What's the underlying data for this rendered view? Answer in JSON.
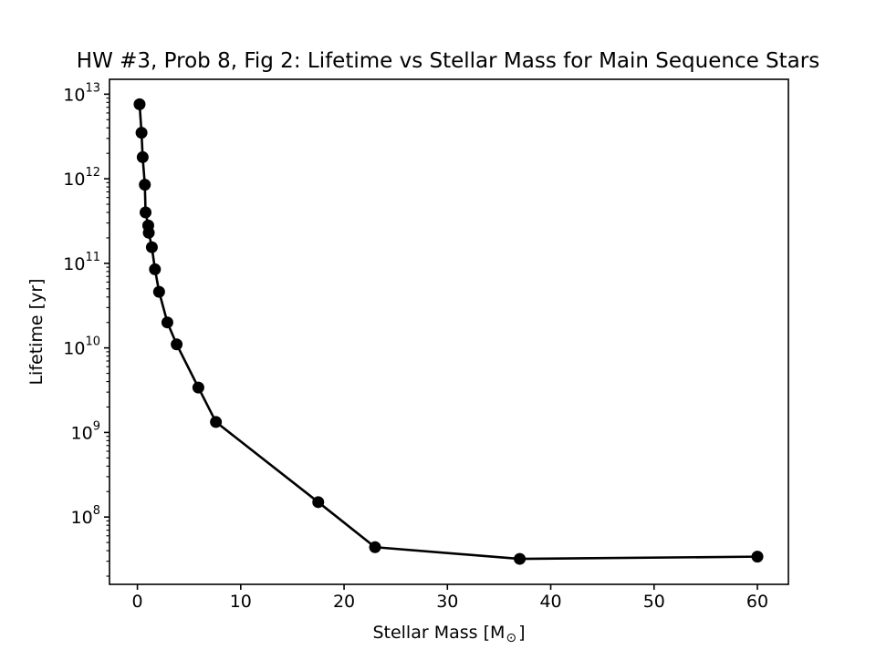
{
  "chart_data": {
    "type": "line",
    "title": "HW #3, Prob 8, Fig 2: Lifetime vs Stellar Mass for Main Sequence Stars",
    "xlabel": {
      "text": "Stellar Mass [M",
      "symbol": "⊙",
      "suffix": "]"
    },
    "ylabel": "Lifetime [yr]",
    "xscale": "linear",
    "yscale": "log",
    "xlim": [
      -2.7,
      63.0
    ],
    "ylim": [
      16000000.0,
      15000000000000.0
    ],
    "xticks": [
      0,
      10,
      20,
      30,
      40,
      50,
      60
    ],
    "xtick_labels": [
      "0",
      "10",
      "20",
      "30",
      "40",
      "50",
      "60"
    ],
    "yticks": [
      100000000.0,
      1000000000.0,
      10000000000.0,
      100000000000.0,
      1000000000000.0,
      10000000000000.0
    ],
    "ytick_labels": [
      {
        "base": "10",
        "exp": "8"
      },
      {
        "base": "10",
        "exp": "9"
      },
      {
        "base": "10",
        "exp": "10"
      },
      {
        "base": "10",
        "exp": "11"
      },
      {
        "base": "10",
        "exp": "12"
      },
      {
        "base": "10",
        "exp": "13"
      }
    ],
    "grid": false,
    "legend": "none",
    "series": [
      {
        "color": "#000000",
        "marker": "circle",
        "x": [
          0.21,
          0.4,
          0.51,
          0.72,
          0.79,
          1.05,
          1.1,
          1.4,
          1.7,
          2.1,
          2.9,
          3.8,
          5.9,
          7.6,
          17.5,
          23.0,
          37.0,
          60.0
        ],
        "y": [
          7600000000000.0,
          3500000000000.0,
          1800000000000.0,
          850000000000.0,
          400000000000.0,
          280000000000.0,
          230000000000.0,
          155000000000.0,
          85000000000.0,
          46000000000.0,
          20000000000.0,
          11000000000.0,
          3400000000.0,
          1330000000.0,
          150000000.0,
          44000000.0,
          32000000.0,
          34000000.0
        ]
      }
    ]
  }
}
